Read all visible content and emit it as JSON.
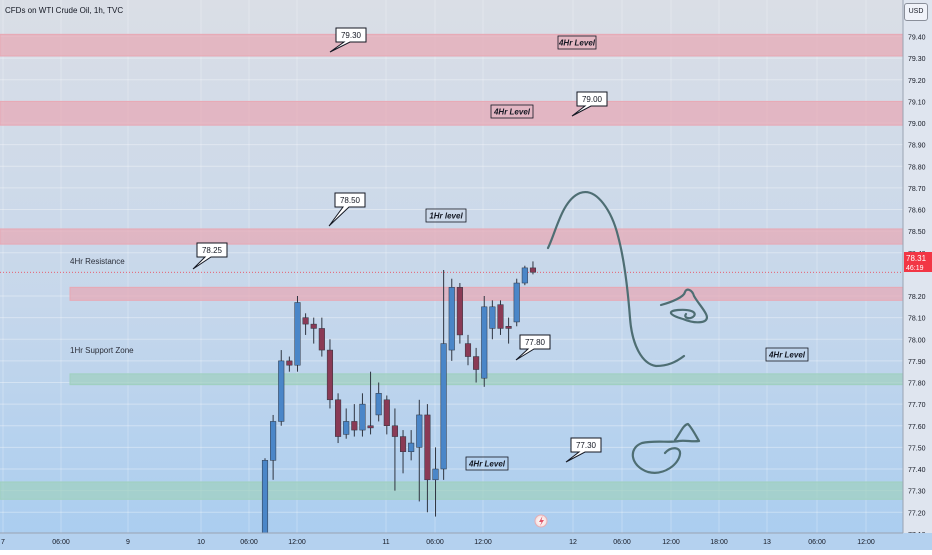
{
  "header": {
    "title": "CFDs on WTI Crude Oil, 1h, TVC"
  },
  "currency_button": {
    "label": "USD"
  },
  "price_label": {
    "price": "78.31",
    "countdown": "46:19"
  },
  "zones": [
    {
      "label": "4Hr Level",
      "price_label": "79.30",
      "color": "#e8a8b4"
    },
    {
      "label": "4Hr Level",
      "price_label": "79.00",
      "color": "#e8a8b4"
    },
    {
      "label": "1Hr level",
      "price_label": "78.50",
      "color": "#e8a8b4"
    },
    {
      "label": "4Hr Resistance",
      "price_label": "78.25",
      "color": "#e8a8b4"
    },
    {
      "label": "1Hr Support Zone",
      "price_label": "",
      "color": "#9fd0bf"
    },
    {
      "label": "4Hr Level",
      "price_label": "77.80",
      "color": "#9fd0bf"
    },
    {
      "label": "4Hr Level",
      "price_label": "77.30",
      "color": "#9fd0bf"
    }
  ],
  "chart_data": {
    "type": "candlestick",
    "title": "CFDs on WTI Crude Oil, 1h, TVC",
    "y_ticks": [
      "79.40",
      "79.30",
      "79.20",
      "79.10",
      "79.00",
      "78.90",
      "78.80",
      "78.70",
      "78.60",
      "78.50",
      "78.40",
      "78.20",
      "78.10",
      "78.00",
      "77.90",
      "77.80",
      "77.70",
      "77.60",
      "77.50",
      "77.40",
      "77.30",
      "77.20",
      "77.10",
      "77.00"
    ],
    "x_ticks": [
      "7",
      "06:00",
      "9",
      "10",
      "06:00",
      "12:00",
      "11",
      "06:00",
      "12:00",
      "12",
      "06:00",
      "12:00",
      "18:00",
      "13",
      "06:00",
      "12:00"
    ],
    "ylim": [
      76.96,
      79.49
    ],
    "last_price": 78.31,
    "candles": [
      {
        "o": 76.5,
        "h": 77.45,
        "l": 76.5,
        "c": 77.44
      },
      {
        "o": 77.44,
        "h": 77.65,
        "l": 77.35,
        "c": 77.62
      },
      {
        "o": 77.62,
        "h": 77.95,
        "l": 77.6,
        "c": 77.9
      },
      {
        "o": 77.9,
        "h": 77.92,
        "l": 77.85,
        "c": 77.88
      },
      {
        "o": 77.88,
        "h": 78.2,
        "l": 77.85,
        "c": 78.17
      },
      {
        "o": 78.1,
        "h": 78.12,
        "l": 78.02,
        "c": 78.07
      },
      {
        "o": 78.07,
        "h": 78.1,
        "l": 77.98,
        "c": 78.05
      },
      {
        "o": 78.05,
        "h": 78.1,
        "l": 77.92,
        "c": 77.95
      },
      {
        "o": 77.95,
        "h": 78.0,
        "l": 77.68,
        "c": 77.72
      },
      {
        "o": 77.72,
        "h": 77.75,
        "l": 77.52,
        "c": 77.55
      },
      {
        "o": 77.56,
        "h": 77.68,
        "l": 77.54,
        "c": 77.62
      },
      {
        "o": 77.62,
        "h": 77.7,
        "l": 77.55,
        "c": 77.58
      },
      {
        "o": 77.58,
        "h": 77.75,
        "l": 77.55,
        "c": 77.7
      },
      {
        "o": 77.6,
        "h": 77.85,
        "l": 77.56,
        "c": 77.59
      },
      {
        "o": 77.65,
        "h": 77.8,
        "l": 77.62,
        "c": 77.75
      },
      {
        "o": 77.72,
        "h": 77.74,
        "l": 77.56,
        "c": 77.6
      },
      {
        "o": 77.6,
        "h": 77.68,
        "l": 77.3,
        "c": 77.55
      },
      {
        "o": 77.55,
        "h": 77.58,
        "l": 77.38,
        "c": 77.48
      },
      {
        "o": 77.48,
        "h": 77.58,
        "l": 77.44,
        "c": 77.52
      },
      {
        "o": 77.5,
        "h": 77.72,
        "l": 77.25,
        "c": 77.65
      },
      {
        "o": 77.65,
        "h": 77.7,
        "l": 77.2,
        "c": 77.35
      },
      {
        "o": 77.35,
        "h": 77.5,
        "l": 77.18,
        "c": 77.4
      },
      {
        "o": 77.4,
        "h": 78.32,
        "l": 77.35,
        "c": 77.98
      },
      {
        "o": 77.95,
        "h": 78.28,
        "l": 77.9,
        "c": 78.24
      },
      {
        "o": 78.24,
        "h": 78.26,
        "l": 77.98,
        "c": 78.02
      },
      {
        "o": 77.98,
        "h": 78.02,
        "l": 77.88,
        "c": 77.92
      },
      {
        "o": 77.92,
        "h": 77.96,
        "l": 77.8,
        "c": 77.86
      },
      {
        "o": 77.82,
        "h": 78.2,
        "l": 77.78,
        "c": 78.15
      },
      {
        "o": 78.05,
        "h": 78.18,
        "l": 78.0,
        "c": 78.15
      },
      {
        "o": 78.16,
        "h": 78.18,
        "l": 78.02,
        "c": 78.05
      },
      {
        "o": 78.06,
        "h": 78.1,
        "l": 77.98,
        "c": 78.05
      },
      {
        "o": 78.08,
        "h": 78.28,
        "l": 78.06,
        "c": 78.26
      },
      {
        "o": 78.26,
        "h": 78.34,
        "l": 78.25,
        "c": 78.33
      },
      {
        "o": 78.33,
        "h": 78.36,
        "l": 78.3,
        "c": 78.31
      }
    ]
  }
}
